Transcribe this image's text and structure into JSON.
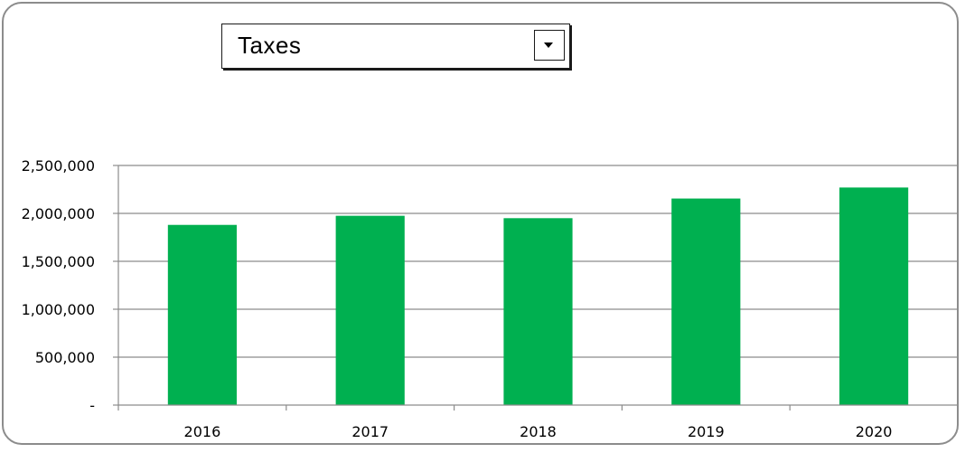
{
  "selector": {
    "selected_value": "Taxes"
  },
  "chart_data": {
    "type": "bar",
    "categories": [
      "2016",
      "2017",
      "2018",
      "2019",
      "2020"
    ],
    "values": [
      1880000,
      1975000,
      1950000,
      2155000,
      2270000
    ],
    "ylim": [
      0,
      2500000
    ],
    "yticks": [
      0,
      500000,
      1000000,
      1500000,
      2000000,
      2500000
    ],
    "ytick_labels": [
      "-",
      "500,000",
      "1,000,000",
      "1,500,000",
      "2,000,000",
      "2,500,000"
    ],
    "grid": true,
    "legend": "none",
    "bar_color": "#00B050",
    "grid_color": "#8c8c8c"
  }
}
